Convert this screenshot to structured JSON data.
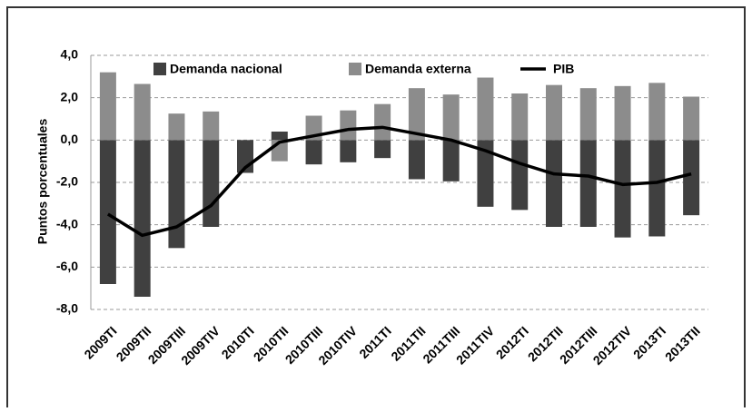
{
  "chart_data": {
    "type": "bar",
    "y_label": "Puntos porcentuales",
    "categories": [
      "2009TI",
      "2009TII",
      "2009TIII",
      "2009TIV",
      "2010TI",
      "2010TII",
      "2010TIII",
      "2010TIV",
      "2011TI",
      "2011TII",
      "2011TIII",
      "2011TIV",
      "2012TI",
      "2012TII",
      "2012TIII",
      "2012TIV",
      "2013TI",
      "2013TII"
    ],
    "series": [
      {
        "name": "Demanda nacional",
        "color": "#404040",
        "values": [
          -6.8,
          -7.4,
          -5.1,
          -4.1,
          -1.55,
          0.4,
          -1.15,
          -1.05,
          -0.85,
          -1.85,
          -1.95,
          -3.15,
          -3.3,
          -4.1,
          -4.1,
          -4.6,
          -4.55,
          -3.55
        ]
      },
      {
        "name": "Demanda externa",
        "color": "#8c8c8c",
        "values": [
          3.2,
          2.65,
          1.25,
          1.35,
          0,
          -1.0,
          1.15,
          1.4,
          1.7,
          2.45,
          2.15,
          2.95,
          2.2,
          2.6,
          2.45,
          2.55,
          2.7,
          2.05
        ]
      },
      {
        "name": "PIB",
        "type": "line",
        "color": "#000000",
        "values": [
          -3.5,
          -4.5,
          -4.1,
          -3.1,
          -1.3,
          -0.1,
          0.2,
          0.5,
          0.6,
          0.3,
          0.0,
          -0.5,
          -1.1,
          -1.6,
          -1.7,
          -2.1,
          -2.0,
          -1.6
        ]
      }
    ],
    "ylim": [
      -8,
      4
    ],
    "yticks": [
      {
        "value": -8,
        "label": "-8,0"
      },
      {
        "value": -6,
        "label": "-6,0"
      },
      {
        "value": -4,
        "label": "-4,0"
      },
      {
        "value": -2,
        "label": "-2,0"
      },
      {
        "value": 0,
        "label": "0,0"
      },
      {
        "value": 2,
        "label": "2,0"
      },
      {
        "value": 4,
        "label": "4,0"
      }
    ],
    "grid": true,
    "legend": "top"
  }
}
